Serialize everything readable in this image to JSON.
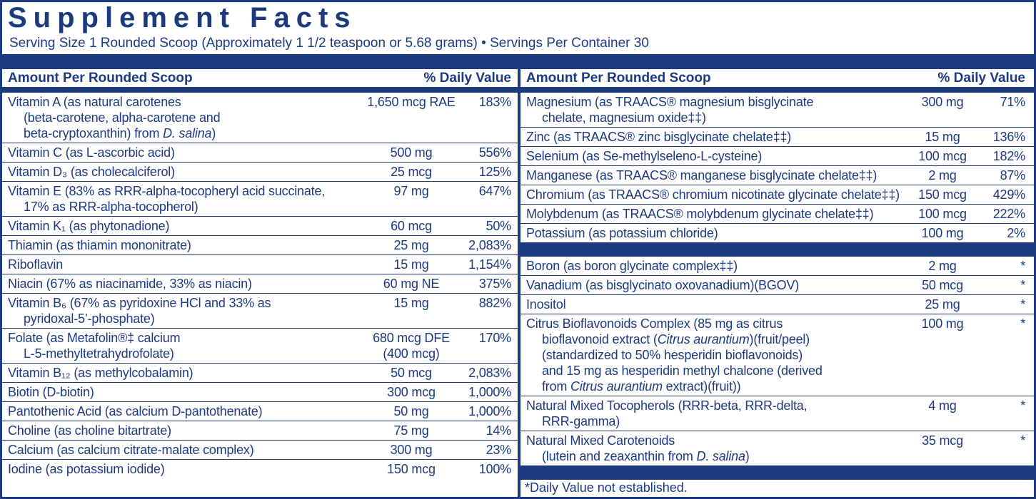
{
  "title": "Supplement Facts",
  "serving": "Serving Size 1 Rounded Scoop (Approximately 1 1/2 teaspoon or 5.68 grams) • Servings Per Container 30",
  "left": {
    "header": {
      "amount": "Amount Per Rounded Scoop",
      "dv": "% Daily Value"
    },
    "sections": [
      {
        "rows": [
          {
            "name": [
              "Vitamin A (as natural carotenes",
              "(beta-carotene, alpha-carotene and",
              [
                "beta-cryptoxanthin) from ",
                {
                  "text": "D. salina",
                  "italic": true
                },
                ")"
              ]
            ],
            "amount": [
              "1,650 mcg RAE"
            ],
            "dv": "183%"
          },
          {
            "name": [
              "Vitamin C (as L-ascorbic acid)"
            ],
            "amount": [
              "500 mg"
            ],
            "dv": "556%"
          },
          {
            "name": [
              "Vitamin D₃ (as cholecalciferol)"
            ],
            "amount": [
              "25 mcg"
            ],
            "dv": "125%"
          },
          {
            "name": [
              "Vitamin E (83% as RRR-alpha-tocopheryl acid succinate,",
              "17% as RRR-alpha-tocopherol)"
            ],
            "amount": [
              "97 mg"
            ],
            "dv": "647%"
          },
          {
            "name": [
              "Vitamin K₁ (as phytonadione)"
            ],
            "amount": [
              "60 mcg"
            ],
            "dv": "50%"
          },
          {
            "name": [
              "Thiamin (as thiamin mononitrate)"
            ],
            "amount": [
              "25 mg"
            ],
            "dv": "2,083%"
          },
          {
            "name": [
              "Riboflavin"
            ],
            "amount": [
              "15 mg"
            ],
            "dv": "1,154%"
          },
          {
            "name": [
              "Niacin (67% as niacinamide, 33% as niacin)"
            ],
            "amount": [
              "60 mg NE"
            ],
            "dv": "375%"
          },
          {
            "name": [
              "Vitamin B₆ (67% as pyridoxine HCl and 33% as",
              "pyridoxal-5’-phosphate)"
            ],
            "amount": [
              "15 mg"
            ],
            "dv": "882%"
          },
          {
            "name": [
              "Folate (as Metafolin®‡ calcium",
              "L-5-methyltetrahydrofolate)"
            ],
            "amount": [
              "680 mcg DFE",
              "(400 mcg)"
            ],
            "dv": "170%"
          },
          {
            "name": [
              "Vitamin B₁₂ (as methylcobalamin)"
            ],
            "amount": [
              "50 mcg"
            ],
            "dv": "2,083%"
          },
          {
            "name": [
              "Biotin (D-biotin)"
            ],
            "amount": [
              "300 mcg"
            ],
            "dv": "1,000%"
          },
          {
            "name": [
              "Pantothenic Acid (as calcium D-pantothenate)"
            ],
            "amount": [
              "50 mg"
            ],
            "dv": "1,000%"
          },
          {
            "name": [
              "Choline (as choline bitartrate)"
            ],
            "amount": [
              "75 mg"
            ],
            "dv": "14%"
          },
          {
            "name": [
              "Calcium (as calcium citrate-malate complex)"
            ],
            "amount": [
              "300 mg"
            ],
            "dv": "23%"
          },
          {
            "name": [
              "Iodine (as potassium iodide)"
            ],
            "amount": [
              "150 mcg"
            ],
            "dv": "100%"
          }
        ]
      }
    ]
  },
  "right": {
    "header": {
      "amount": "Amount Per Rounded Scoop",
      "dv": "% Daily Value"
    },
    "sections": [
      {
        "rows": [
          {
            "name": [
              "Magnesium (as TRAACS® magnesium bisglycinate",
              "chelate, magnesium oxide‡‡)"
            ],
            "amount": [
              "300 mg"
            ],
            "dv": "71%"
          },
          {
            "name": [
              "Zinc (as TRAACS® zinc bisglycinate chelate‡‡)"
            ],
            "amount": [
              "15 mg"
            ],
            "dv": "136%"
          },
          {
            "name": [
              "Selenium (as Se-methylseleno-L-cysteine)"
            ],
            "amount": [
              "100 mcg"
            ],
            "dv": "182%"
          },
          {
            "name": [
              "Manganese (as TRAACS® manganese bisglycinate chelate‡‡)"
            ],
            "amount": [
              "2 mg"
            ],
            "dv": "87%"
          },
          {
            "name": [
              "Chromium (as TRAACS® chromium nicotinate glycinate chelate‡‡)"
            ],
            "amount": [
              "150 mcg"
            ],
            "dv": "429%"
          },
          {
            "name": [
              "Molybdenum (as TRAACS® molybdenum glycinate chelate‡‡)"
            ],
            "amount": [
              "100 mcg"
            ],
            "dv": "222%"
          },
          {
            "name": [
              "Potassium (as potassium chloride)"
            ],
            "amount": [
              "100 mg"
            ],
            "dv": "2%"
          }
        ]
      },
      {
        "rows": [
          {
            "name": [
              "Boron (as boron glycinate complex‡‡)"
            ],
            "amount": [
              "2 mg"
            ],
            "dv": "*"
          },
          {
            "name": [
              "Vanadium (as bisglycinato oxovanadium)(BGOV)"
            ],
            "amount": [
              "50 mcg"
            ],
            "dv": "*"
          },
          {
            "name": [
              "Inositol"
            ],
            "amount": [
              "25 mg"
            ],
            "dv": "*"
          },
          {
            "name": [
              "Citrus Bioflavonoids Complex (85 mg as citrus",
              [
                "bioflavonoid extract (",
                {
                  "text": "Citrus aurantium",
                  "italic": true
                },
                ")(fruit/peel)"
              ],
              "(standardized to 50% hesperidin bioflavonoids)",
              "and 15 mg as hesperidin methyl chalcone (derived",
              [
                "from ",
                {
                  "text": "Citrus aurantium",
                  "italic": true
                },
                " extract)(fruit))"
              ]
            ],
            "amount": [
              "100 mg"
            ],
            "dv": "*"
          },
          {
            "name": [
              "Natural Mixed Tocopherols (RRR-beta, RRR-delta,",
              "RRR-gamma)"
            ],
            "amount": [
              "4 mg"
            ],
            "dv": "*"
          },
          {
            "name": [
              "Natural Mixed Carotenoids",
              [
                "(lutein and zeaxanthin from ",
                {
                  "text": "D. salina",
                  "italic": true
                },
                ")"
              ]
            ],
            "amount": [
              "35 mcg"
            ],
            "dv": "*"
          }
        ]
      }
    ],
    "footnote": "*Daily Value not established."
  }
}
